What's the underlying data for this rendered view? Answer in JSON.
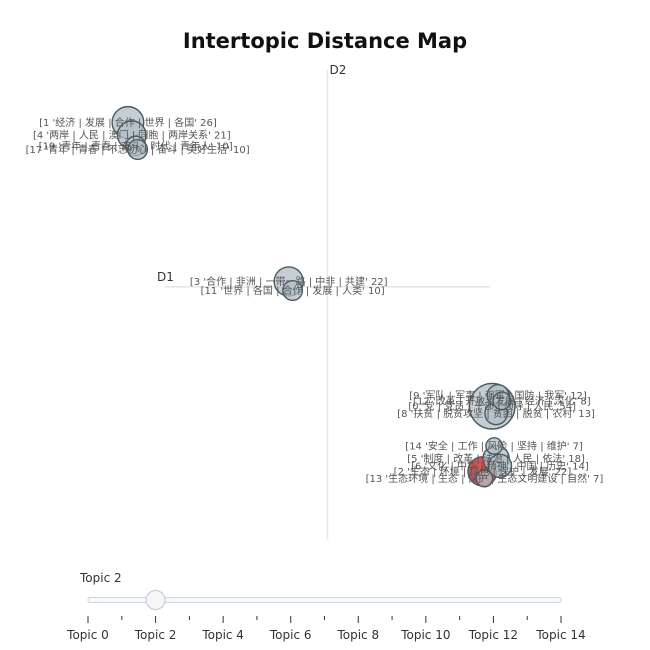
{
  "chart_data": {
    "type": "scatter",
    "title": "Intertopic Distance Map",
    "xlabel": "D1",
    "ylabel": "D2",
    "xlim": [
      -12,
      12
    ],
    "ylim": [
      -14,
      12
    ],
    "grid": false,
    "highlight_color": "#d62728",
    "bubble_color": "#b0bec5",
    "points": [
      {
        "label": "[1 '经济 | 发展 | 合作 | 世界 | 各国' 26]",
        "x": -10.3,
        "y": 9.1,
        "size": 26,
        "selected": false
      },
      {
        "label": "[4 '两岸 | 人民 | 澳门 | 同胞 | 两岸关系' 21]",
        "x": -10.1,
        "y": 8.4,
        "size": 21,
        "selected": false
      },
      {
        "label": "[19 '青年 | 青春 | 奋斗 | 时代 | 青年人' 10]",
        "x": -9.9,
        "y": 7.8,
        "size": 10,
        "selected": false
      },
      {
        "label": "[17 '青年 | 青春 | 不忘初心 | 奋斗 | 美好生活' 10]",
        "x": -9.8,
        "y": 7.6,
        "size": 10,
        "selected": false
      },
      {
        "label": "[3 '合作 | 非洲 | 一带一路 | 中非 | 共建' 22]",
        "x": -2.0,
        "y": 0.3,
        "size": 22,
        "selected": false
      },
      {
        "label": "[11 '世界 | 各国 | 合作 | 发展 | 人类' 10]",
        "x": -1.8,
        "y": -0.2,
        "size": 10,
        "selected": false
      },
      {
        "label": "[9 '军队 | 军事 | 强军 | 国防 | 我军' 12]",
        "x": 8.8,
        "y": -6.0,
        "size": 12,
        "selected": false
      },
      {
        "label": "[12 '改革 | 开放 | 发展 | 经济 | 深化' 8]",
        "x": 9.0,
        "y": -6.3,
        "size": 8,
        "selected": false
      },
      {
        "label": "[0 '党 | 党员 | 干部 | 领导 | 人民' 54]",
        "x": 8.5,
        "y": -6.6,
        "size": 54,
        "selected": false
      },
      {
        "label": "[8 '扶贫 | 脱贫攻坚 | 贫困 | 脱贫 | 农村' 13]",
        "x": 8.7,
        "y": -7.0,
        "size": 13,
        "selected": false
      },
      {
        "label": "[14 '安全 | 工作 | 风险 | 坚持 | 维护' 7]",
        "x": 8.6,
        "y": -8.8,
        "size": 7,
        "selected": false
      },
      {
        "label": "[5 '制度 | 改革 | 法治 | 人民 | 依法' 18]",
        "x": 8.7,
        "y": -9.5,
        "size": 18,
        "selected": false
      },
      {
        "label": "[6 '文化 | 中华 | 精神 | 中国 | 历史' 14]",
        "x": 8.9,
        "y": -9.9,
        "size": 14,
        "selected": false
      },
      {
        "label": "[2 '生态 | 环境 | 绿色 | 保护 | 发展' 22]",
        "x": 8.0,
        "y": -10.2,
        "size": 22,
        "selected": true
      },
      {
        "label": "[13 '生态环境 | 生态 | 保护 | 生态文明建设 | 自然' 7]",
        "x": 8.1,
        "y": -10.6,
        "size": 7,
        "selected": false
      }
    ],
    "slider": {
      "current_label": "Topic 2",
      "current_value": 2,
      "min": 0,
      "max": 14,
      "tick_labels": [
        "Topic 0",
        "Topic 2",
        "Topic 4",
        "Topic 6",
        "Topic 8",
        "Topic 10",
        "Topic 12",
        "Topic 14"
      ],
      "tick_values": [
        0,
        2,
        4,
        6,
        8,
        10,
        12,
        14
      ]
    }
  }
}
